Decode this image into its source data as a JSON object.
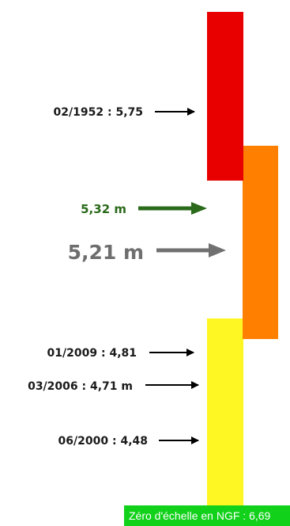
{
  "colors": {
    "red_zone": "#e80000",
    "orange_zone": "#ff7f00",
    "yellow_zone": "#fff723",
    "current_arrow": "#2a6a1a",
    "forecast_arrow": "#707070",
    "marker_arrow": "#000000",
    "zero_box": "#11d11a"
  },
  "markers": [
    {
      "text": "02/1952 : 5,75"
    },
    {
      "text": "01/2009 : 4,81"
    },
    {
      "text": "03/2006 : 4,71 m"
    },
    {
      "text": "06/2000 : 4,48"
    }
  ],
  "current_level": {
    "text": "5,32 m"
  },
  "forecast_level": {
    "text": "5,21 m"
  },
  "zero_reference": {
    "text": "Zéro d'échelle en NGF : 6,69"
  }
}
